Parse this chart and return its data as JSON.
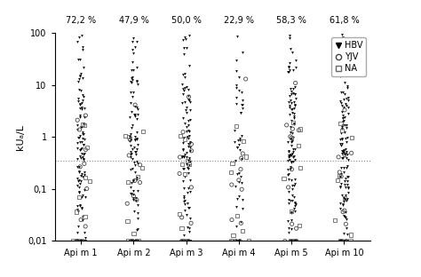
{
  "ylabel": "kUₐ/L",
  "groups": [
    "Api m 1",
    "Api m 2",
    "Api m 3",
    "Api m 4",
    "Api m 5",
    "Api m 10"
  ],
  "percentages": [
    "72,2 %",
    "47,9 %",
    "50,0 %",
    "22,9 %",
    "58,3 %",
    "61,8 %"
  ],
  "ylim": [
    0.01,
    100
  ],
  "yticks": [
    0.01,
    0.1,
    1,
    10,
    100
  ],
  "ytick_labels": [
    "0,01",
    "0,1",
    "1",
    "10",
    "100"
  ],
  "hline_y": 0.35,
  "seed": 42,
  "n_HBV": [
    108,
    96,
    100,
    46,
    116,
    124
  ],
  "n_YJV": [
    12,
    12,
    12,
    12,
    12,
    12
  ],
  "n_NA": [
    10,
    10,
    10,
    10,
    10,
    10
  ],
  "group_positions": [
    1,
    2,
    3,
    4,
    5,
    6
  ],
  "jitter_hbv": 0.08,
  "jitter_yjv": 0.14,
  "jitter_na": 0.18
}
